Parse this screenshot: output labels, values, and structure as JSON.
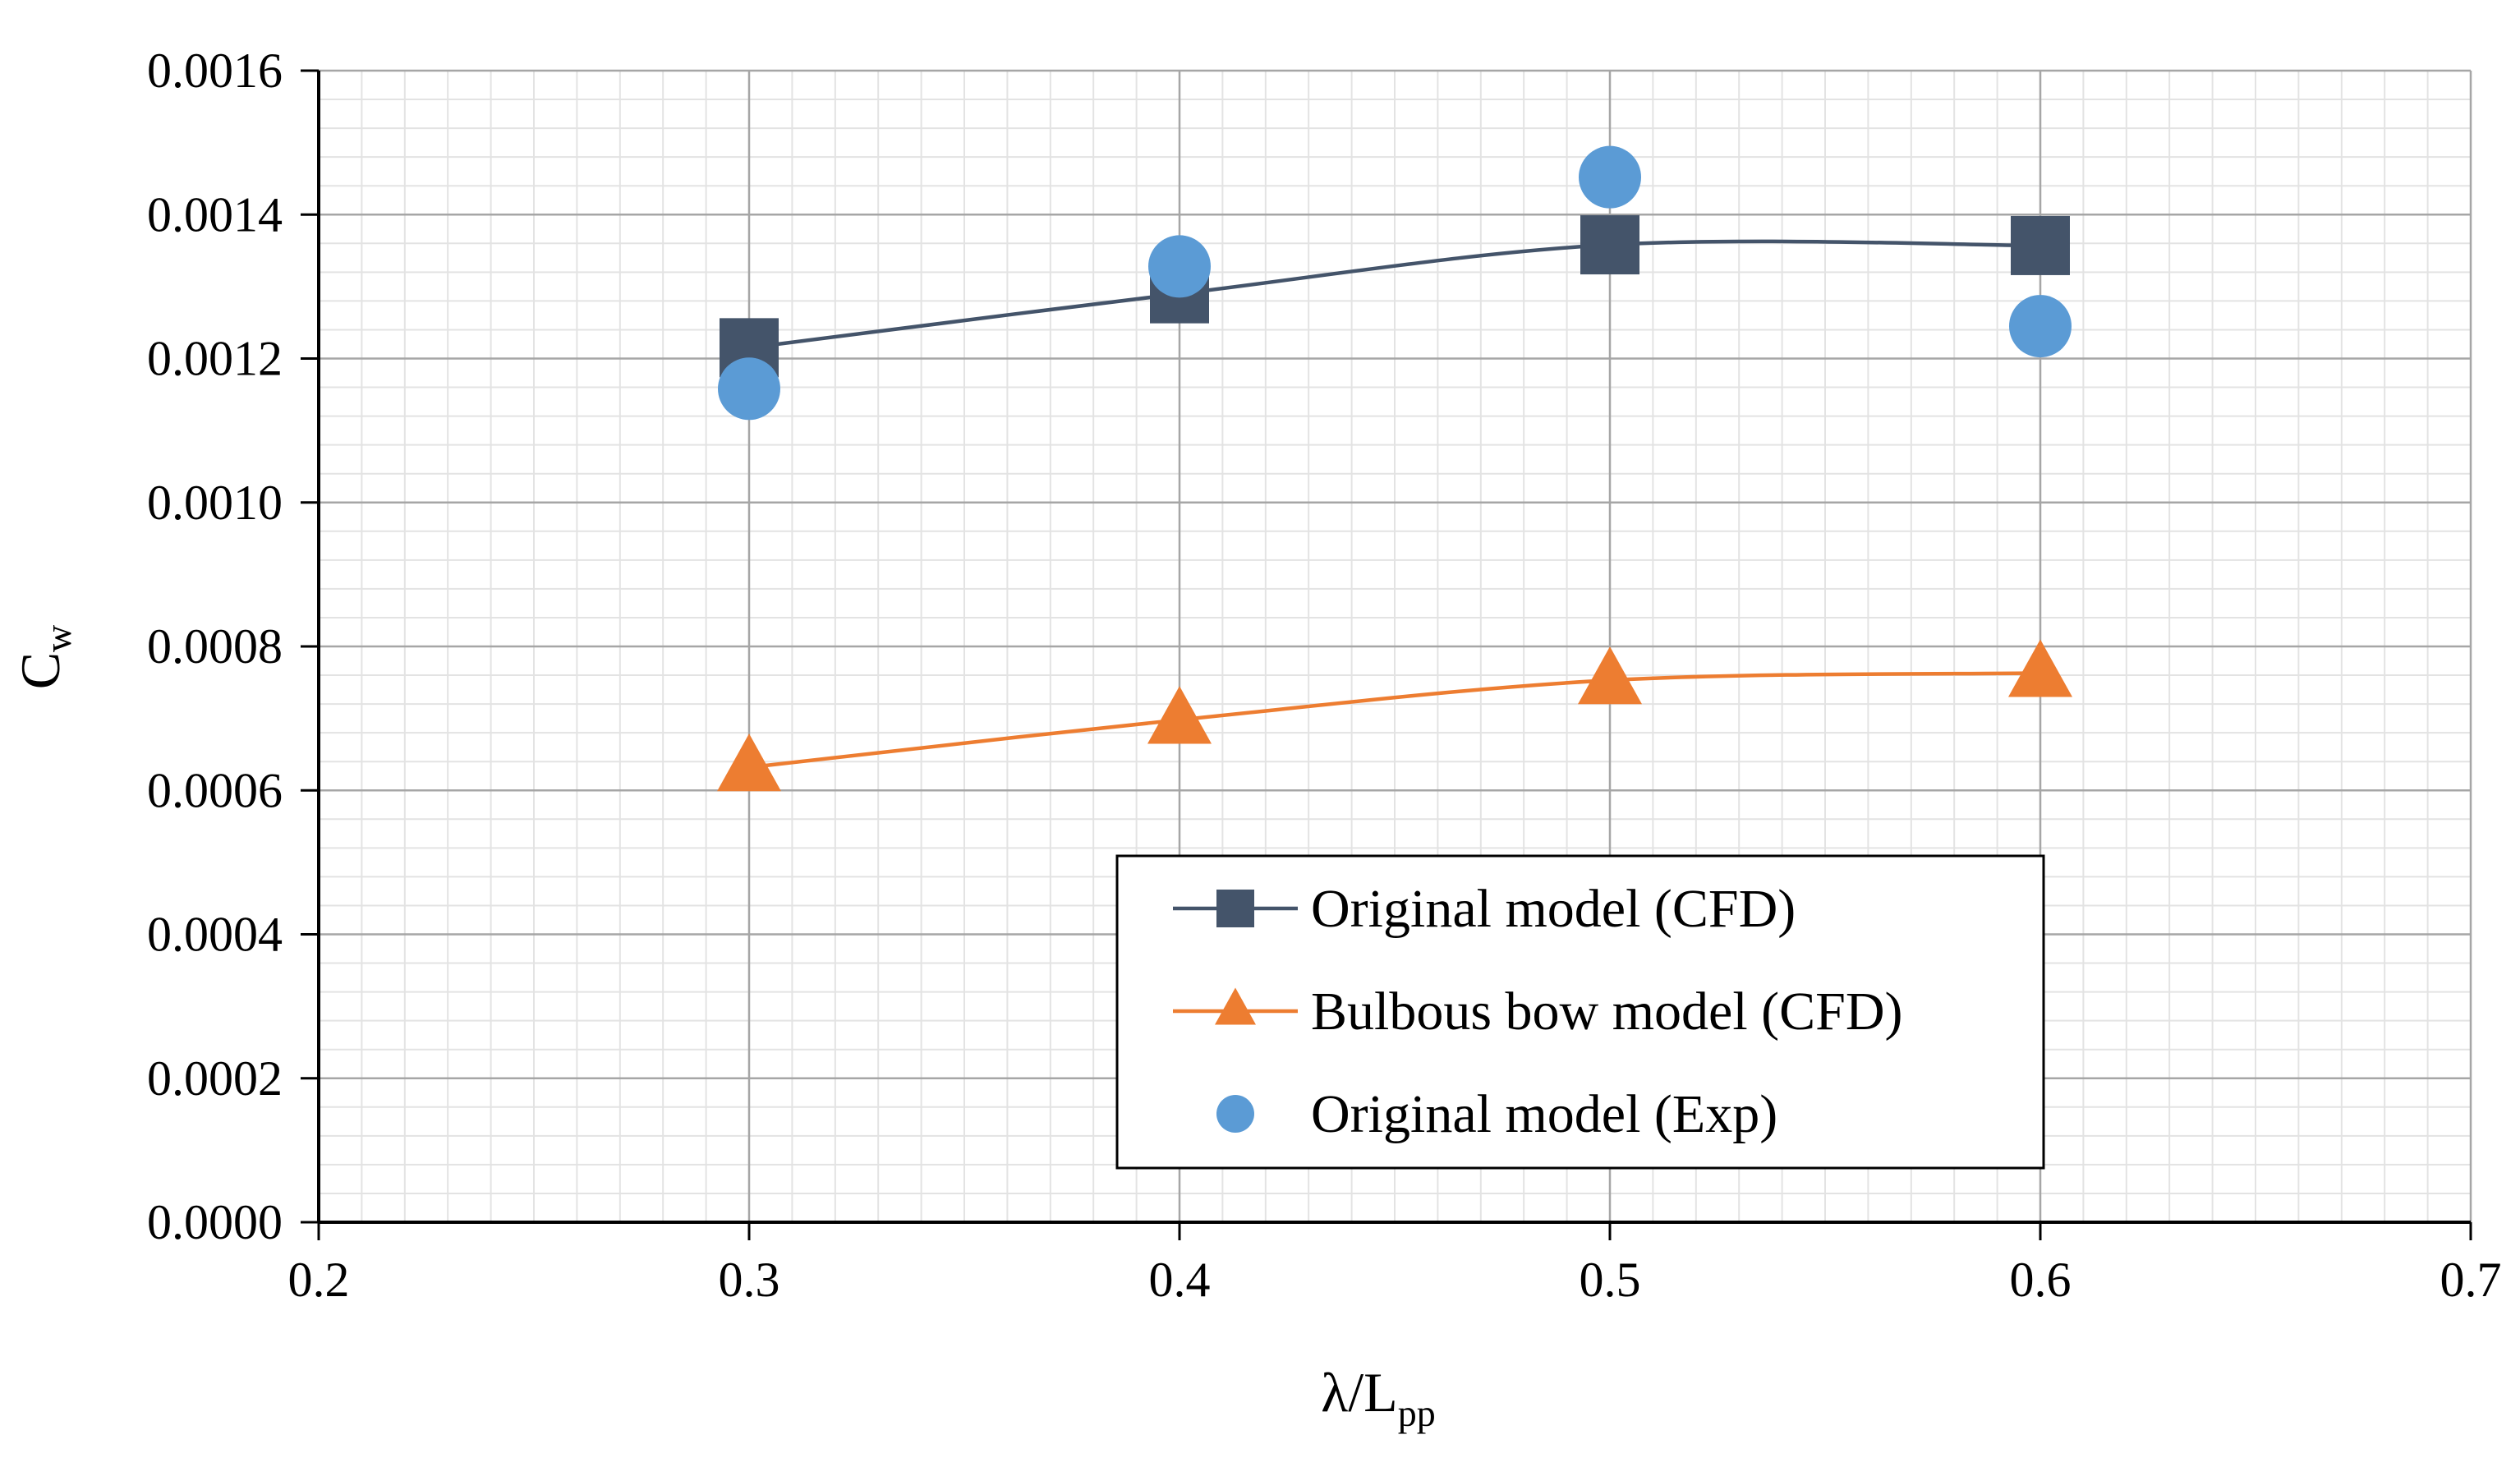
{
  "chart_data": {
    "type": "line",
    "title": "",
    "xlabel": {
      "main": "λ/L",
      "sub": "pp"
    },
    "ylabel": {
      "main": "C",
      "sub": "w"
    },
    "xlim": [
      0.2,
      0.7
    ],
    "ylim": [
      0.0,
      0.0016
    ],
    "x_ticks": [
      "0.2",
      "0.3",
      "0.4",
      "0.5",
      "0.6",
      "0.7"
    ],
    "y_ticks": [
      "0.0000",
      "0.0002",
      "0.0004",
      "0.0006",
      "0.0008",
      "0.0010",
      "0.0012",
      "0.0014",
      "0.0016"
    ],
    "grid": true,
    "legend_position": "bottom-center",
    "series": [
      {
        "name": "Original model (CFD)",
        "marker": "square",
        "line": "smooth",
        "color": "#44546A",
        "x": [
          0.3,
          0.4,
          0.5,
          0.6
        ],
        "values": [
          0.001215,
          0.00129,
          0.001358,
          0.001357
        ]
      },
      {
        "name": "Bulbous bow model (CFD)",
        "marker": "triangle",
        "line": "smooth",
        "color": "#ED7D31",
        "x": [
          0.3,
          0.4,
          0.5,
          0.6
        ],
        "values": [
          0.000632,
          0.000698,
          0.000753,
          0.000763
        ]
      },
      {
        "name": "Original model (Exp)",
        "marker": "circle",
        "line": "none",
        "color": "#5B9BD5",
        "x": [
          0.3,
          0.4,
          0.5,
          0.6
        ],
        "values": [
          0.001158,
          0.001328,
          0.001452,
          0.001245
        ]
      }
    ]
  }
}
